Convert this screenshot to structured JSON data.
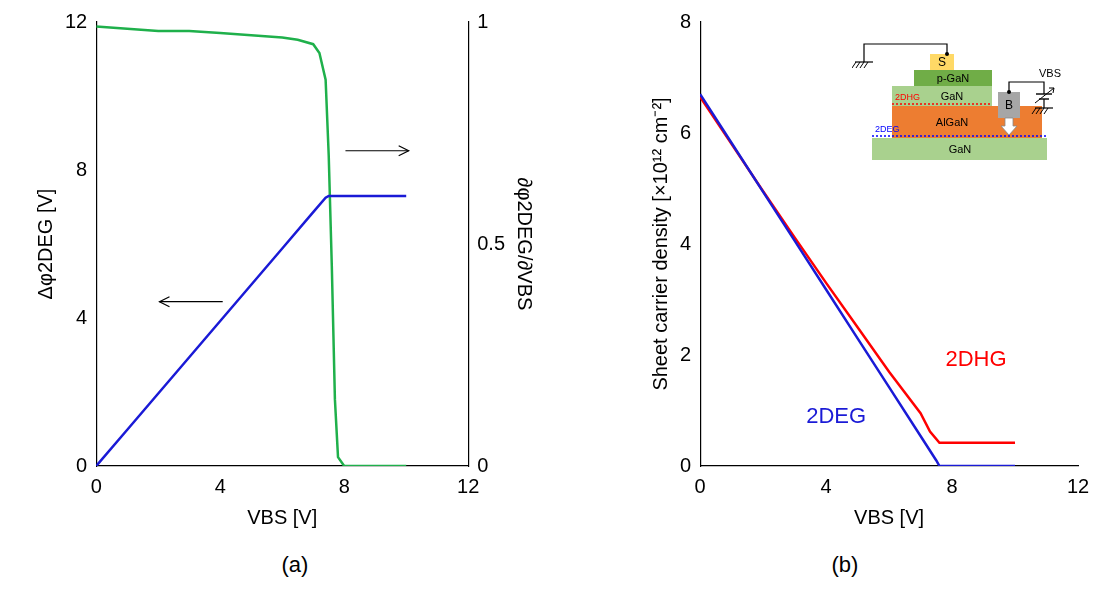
{
  "chart_data": [
    {
      "type": "line",
      "panel_label": "(a)",
      "x_label": "VBS [V]",
      "y_label": "Δφ2DEG [V]",
      "y2_label": "∂φ2DEG/∂VBS",
      "xlim": [
        0,
        12
      ],
      "xticks": [
        0,
        4,
        8,
        12
      ],
      "ylim": [
        0,
        12
      ],
      "yticks": [
        0,
        4,
        8,
        12
      ],
      "y2lim": [
        0,
        1
      ],
      "y2ticks": [
        0,
        0.5,
        1
      ],
      "grid": false,
      "series": [
        {
          "color": "#1a1ad6",
          "x": [
            0,
            1,
            2,
            3,
            4,
            5,
            6,
            7,
            7.4,
            7.5,
            8,
            9,
            10
          ],
          "values": [
            0,
            0.98,
            1.96,
            2.94,
            3.92,
            4.9,
            5.88,
            6.86,
            7.25,
            7.3,
            7.3,
            7.3,
            7.3
          ]
        },
        {
          "color": "#1fb04b",
          "axis": "y2",
          "x": [
            0,
            1,
            2,
            3,
            4,
            5,
            6,
            6.5,
            7,
            7.2,
            7.4,
            7.5,
            7.6,
            7.7,
            7.8,
            8,
            9,
            10
          ],
          "values": [
            0.99,
            0.985,
            0.98,
            0.98,
            0.975,
            0.97,
            0.965,
            0.96,
            0.95,
            0.93,
            0.87,
            0.7,
            0.45,
            0.15,
            0.02,
            0,
            0,
            0
          ]
        }
      ]
    },
    {
      "type": "line",
      "panel_label": "(b)",
      "x_label": "VBS [V]",
      "y_label": "Sheet carrier density [×10¹² cm⁻²]",
      "xlim": [
        0,
        12
      ],
      "xticks": [
        0,
        4,
        8,
        12
      ],
      "ylim": [
        0,
        8
      ],
      "yticks": [
        0,
        2,
        4,
        6,
        8
      ],
      "grid": false,
      "series": [
        {
          "name": "2DEG",
          "color": "#1a1ad6",
          "x": [
            0,
            1,
            2,
            3,
            4,
            5,
            6,
            7,
            7.5,
            7.6,
            8,
            9,
            10
          ],
          "values": [
            6.7,
            5.82,
            4.94,
            4.06,
            3.18,
            2.3,
            1.42,
            0.54,
            0.1,
            0,
            0,
            0,
            0
          ]
        },
        {
          "name": "2DHG",
          "color": "#ff0000",
          "x": [
            0,
            1,
            2,
            3,
            4,
            5,
            6,
            7,
            7.3,
            7.6,
            8,
            9,
            10
          ],
          "values": [
            6.65,
            5.8,
            4.95,
            4.12,
            3.3,
            2.5,
            1.7,
            0.95,
            0.62,
            0.42,
            0.42,
            0.42,
            0.42
          ]
        }
      ],
      "inset": {
        "source": "S",
        "body": "B",
        "bias": "VBS",
        "layers": [
          "p-GaN",
          "GaN",
          "AlGaN",
          "GaN"
        ],
        "channels": [
          "2DHG",
          "2DEG"
        ]
      }
    }
  ]
}
